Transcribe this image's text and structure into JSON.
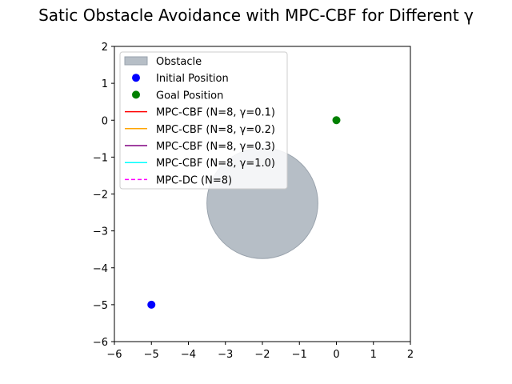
{
  "chart_data": {
    "type": "scatter",
    "title": "Satic Obstacle Avoidance with MPC-CBF for Different γ",
    "xlabel": "",
    "ylabel": "",
    "xlim": [
      -6,
      2
    ],
    "ylim": [
      -6,
      2
    ],
    "x_ticks": [
      -6,
      -5,
      -4,
      -3,
      -2,
      -1,
      0,
      1,
      2
    ],
    "y_ticks": [
      -6,
      -5,
      -4,
      -3,
      -2,
      -1,
      0,
      1,
      2
    ],
    "x_tick_labels": [
      "−6",
      "−5",
      "−4",
      "−3",
      "−2",
      "−1",
      "0",
      "1",
      "2"
    ],
    "y_tick_labels": [
      "−6",
      "−5",
      "−4",
      "−3",
      "−2",
      "−1",
      "0",
      "1",
      "2"
    ],
    "grid": false,
    "legend_position": "upper-left",
    "obstacle": {
      "label": "Obstacle",
      "center": [
        -2,
        -2.25
      ],
      "radius": 1.5,
      "color": "#b6bec6"
    },
    "points": [
      {
        "label": "Initial Position",
        "x": -5,
        "y": -5,
        "color": "#0000ff"
      },
      {
        "label": "Goal Position",
        "x": 0,
        "y": 0,
        "color": "#008000"
      }
    ],
    "series": [
      {
        "name": "MPC-CBF (N=8, γ=0.1)",
        "color": "#ff0000",
        "style": "solid",
        "x": [],
        "y": []
      },
      {
        "name": "MPC-CBF (N=8, γ=0.2)",
        "color": "#ffa500",
        "style": "solid",
        "x": [],
        "y": []
      },
      {
        "name": "MPC-CBF (N=8, γ=0.3)",
        "color": "#800080",
        "style": "solid",
        "x": [],
        "y": []
      },
      {
        "name": "MPC-CBF (N=8, γ=1.0)",
        "color": "#00ffff",
        "style": "solid",
        "x": [],
        "y": []
      },
      {
        "name": "MPC-DC (N=8)",
        "color": "#ff00ff",
        "style": "dashed",
        "x": [],
        "y": []
      }
    ]
  }
}
